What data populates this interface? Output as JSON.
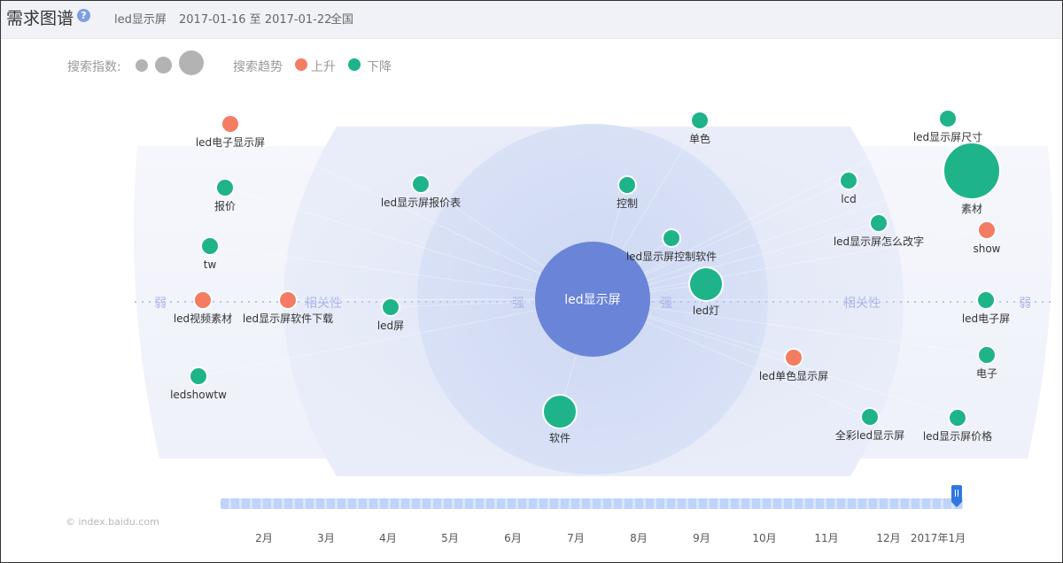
{
  "header": {
    "title": "需求图谱",
    "keyword": "led显示屏",
    "date_range": "2017-01-16 至 2017-01-22",
    "region": "全国"
  },
  "legend": {
    "index_label": "搜索指数:",
    "trend_label": "搜索趋势",
    "up_label": "上升",
    "down_label": "下降"
  },
  "colors": {
    "up": "#f47c62",
    "down": "#1fb38a",
    "center": "#6a84d8",
    "size_legend": "#b3b3b3",
    "band_text": "#a9b5e6"
  },
  "chart_data": {
    "type": "scatter",
    "center": "led显示屏",
    "band_labels": [
      "弱",
      "相关性",
      "强",
      "强",
      "相关性",
      "弱"
    ],
    "nodes": [
      {
        "label": "led电子显示屏",
        "trend": "up",
        "size": 1
      },
      {
        "label": "报价",
        "trend": "down",
        "size": 1
      },
      {
        "label": "tw",
        "trend": "down",
        "size": 1
      },
      {
        "label": "led视频素材",
        "trend": "up",
        "size": 1
      },
      {
        "label": "led显示屏软件下载",
        "trend": "up",
        "size": 1
      },
      {
        "label": "ledshowtw",
        "trend": "down",
        "size": 1
      },
      {
        "label": "led显示屏报价表",
        "trend": "down",
        "size": 1
      },
      {
        "label": "led屏",
        "trend": "down",
        "size": 1
      },
      {
        "label": "控制",
        "trend": "down",
        "size": 1
      },
      {
        "label": "led显示屏控制软件",
        "trend": "down",
        "size": 1
      },
      {
        "label": "led灯",
        "trend": "down",
        "size": 2
      },
      {
        "label": "软件",
        "trend": "down",
        "size": 2
      },
      {
        "label": "单色",
        "trend": "down",
        "size": 1
      },
      {
        "label": "lcd",
        "trend": "down",
        "size": 1
      },
      {
        "label": "led显示屏怎么改字",
        "trend": "down",
        "size": 1
      },
      {
        "label": "led单色显示屏",
        "trend": "up",
        "size": 1
      },
      {
        "label": "全彩led显示屏",
        "trend": "down",
        "size": 1
      },
      {
        "label": "led显示屏尺寸",
        "trend": "down",
        "size": 1
      },
      {
        "label": "素材",
        "trend": "down",
        "size": 3
      },
      {
        "label": "show",
        "trend": "up",
        "size": 1
      },
      {
        "label": "led电子屏",
        "trend": "down",
        "size": 1
      },
      {
        "label": "电子",
        "trend": "down",
        "size": 1
      },
      {
        "label": "led显示屏价格",
        "trend": "down",
        "size": 1
      }
    ]
  },
  "timeline": {
    "months": [
      "2月",
      "3月",
      "4月",
      "5月",
      "6月",
      "7月",
      "8月",
      "9月",
      "10月",
      "11月",
      "12月",
      "2017年1月"
    ]
  },
  "footer": {
    "watermark": "© index.baidu.com"
  }
}
